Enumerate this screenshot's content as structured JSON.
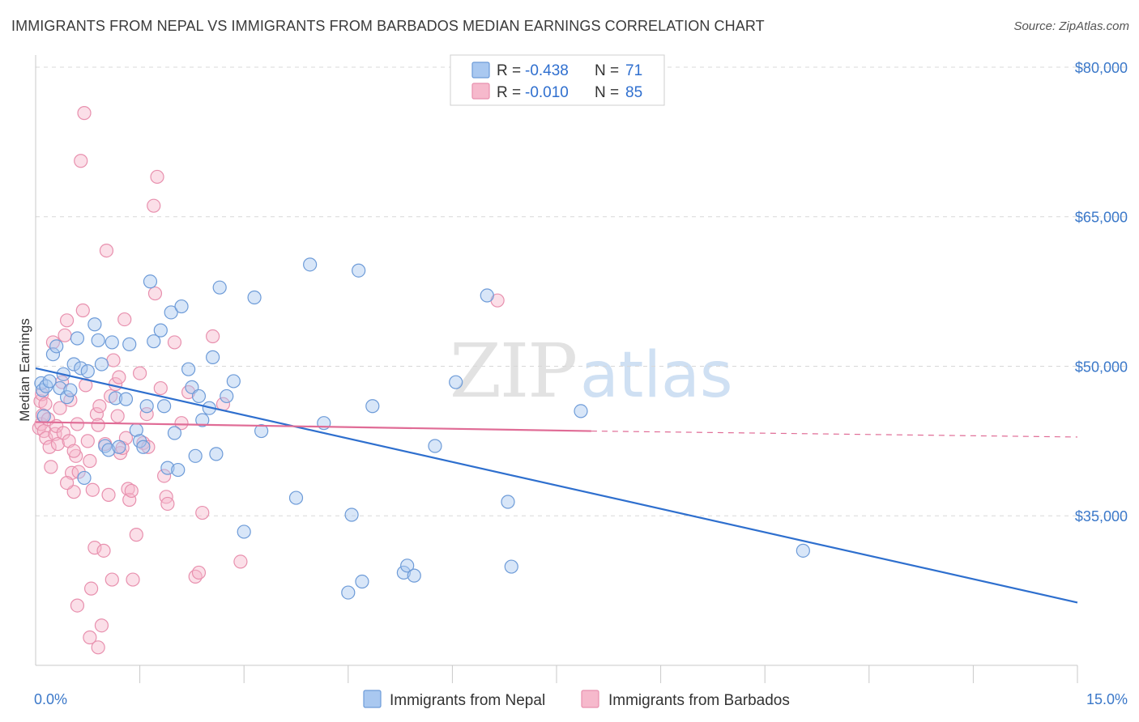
{
  "header": {
    "title": "IMMIGRANTS FROM NEPAL VS IMMIGRANTS FROM BARBADOS MEDIAN EARNINGS CORRELATION CHART",
    "source": "Source: ZipAtlas.com"
  },
  "watermark": {
    "zip": "ZIP",
    "atlas": "atlas"
  },
  "colors": {
    "nepal_fill": "#a9c8f0",
    "nepal_stroke": "#6d9bd8",
    "nepal_line": "#2e6fce",
    "barbados_fill": "#f6b9cc",
    "barbados_stroke": "#e890ae",
    "barbados_line": "#e06c96",
    "grid": "#d8d8d8",
    "axis_text": "#3b78c9"
  },
  "legend": {
    "r_label": "R =",
    "n_label": "N =",
    "items": [
      {
        "series": "nepal",
        "r": "-0.438",
        "n": "71"
      },
      {
        "series": "barbados",
        "r": "-0.010",
        "n": "85"
      }
    ]
  },
  "chart_data": {
    "type": "scatter",
    "title": "IMMIGRANTS FROM NEPAL VS IMMIGRANTS FROM BARBADOS MEDIAN EARNINGS CORRELATION CHART",
    "xlabel": "",
    "ylabel": "Median Earnings",
    "xlim": [
      0,
      15
    ],
    "ylim": [
      20000,
      83000
    ],
    "x_tick_labels": {
      "min": "0.0%",
      "max": "15.0%"
    },
    "y_ticks": [
      {
        "value": 80000,
        "label": "$80,000"
      },
      {
        "value": 65000,
        "label": "$65,000"
      },
      {
        "value": 50000,
        "label": "$50,000"
      },
      {
        "value": 35000,
        "label": "$35,000"
      }
    ],
    "series": [
      {
        "name": "Immigrants from Nepal",
        "key": "nepal",
        "trend": {
          "x0": 0.0,
          "y0": 49800,
          "x1": 15.0,
          "y1": 26300
        },
        "points": [
          [
            0.08,
            48300
          ],
          [
            0.1,
            47600
          ],
          [
            0.12,
            45000
          ],
          [
            0.15,
            48000
          ],
          [
            0.2,
            48500
          ],
          [
            0.25,
            51200
          ],
          [
            0.3,
            52000
          ],
          [
            0.35,
            47800
          ],
          [
            0.4,
            49200
          ],
          [
            0.45,
            46900
          ],
          [
            0.5,
            47600
          ],
          [
            0.55,
            50200
          ],
          [
            0.6,
            52800
          ],
          [
            0.65,
            49800
          ],
          [
            0.7,
            38800
          ],
          [
            0.75,
            49500
          ],
          [
            0.85,
            54200
          ],
          [
            0.9,
            52600
          ],
          [
            0.95,
            50200
          ],
          [
            1.0,
            42000
          ],
          [
            1.05,
            41600
          ],
          [
            1.1,
            52400
          ],
          [
            1.15,
            46800
          ],
          [
            1.2,
            41900
          ],
          [
            1.3,
            46700
          ],
          [
            1.35,
            52200
          ],
          [
            1.45,
            43600
          ],
          [
            1.5,
            42500
          ],
          [
            1.55,
            41900
          ],
          [
            1.6,
            46000
          ],
          [
            1.65,
            58500
          ],
          [
            1.7,
            52500
          ],
          [
            1.8,
            53600
          ],
          [
            1.85,
            46000
          ],
          [
            1.9,
            39800
          ],
          [
            1.95,
            55400
          ],
          [
            2.0,
            43300
          ],
          [
            2.05,
            39600
          ],
          [
            2.1,
            56000
          ],
          [
            2.2,
            49700
          ],
          [
            2.25,
            47900
          ],
          [
            2.3,
            41000
          ],
          [
            2.35,
            47000
          ],
          [
            2.4,
            44600
          ],
          [
            2.5,
            45800
          ],
          [
            2.55,
            50900
          ],
          [
            2.6,
            41200
          ],
          [
            2.65,
            57900
          ],
          [
            2.75,
            47000
          ],
          [
            2.85,
            48500
          ],
          [
            3.0,
            33400
          ],
          [
            3.15,
            56900
          ],
          [
            3.25,
            43500
          ],
          [
            3.75,
            36800
          ],
          [
            3.95,
            60200
          ],
          [
            4.15,
            44300
          ],
          [
            4.5,
            27300
          ],
          [
            4.55,
            35100
          ],
          [
            4.65,
            59600
          ],
          [
            4.7,
            28400
          ],
          [
            4.85,
            46000
          ],
          [
            5.3,
            29300
          ],
          [
            5.35,
            30000
          ],
          [
            5.45,
            29000
          ],
          [
            5.75,
            42000
          ],
          [
            6.05,
            48400
          ],
          [
            6.5,
            57100
          ],
          [
            6.8,
            36400
          ],
          [
            6.85,
            29900
          ],
          [
            7.85,
            45500
          ],
          [
            11.05,
            31500
          ]
        ]
      },
      {
        "name": "Immigrants from Barbados",
        "key": "barbados",
        "trend": {
          "x0": 0.0,
          "y0": 44400,
          "x1": 8.0,
          "y1": 43500
        },
        "trend_dashed": {
          "x0": 8.0,
          "y0": 43500,
          "x1": 15.0,
          "y1": 42900
        },
        "points": [
          [
            0.05,
            43800
          ],
          [
            0.07,
            46500
          ],
          [
            0.08,
            44200
          ],
          [
            0.09,
            47200
          ],
          [
            0.1,
            45100
          ],
          [
            0.12,
            43500
          ],
          [
            0.14,
            46200
          ],
          [
            0.15,
            42800
          ],
          [
            0.18,
            44700
          ],
          [
            0.2,
            41900
          ],
          [
            0.22,
            39900
          ],
          [
            0.25,
            52400
          ],
          [
            0.28,
            43200
          ],
          [
            0.3,
            44000
          ],
          [
            0.32,
            42200
          ],
          [
            0.35,
            45800
          ],
          [
            0.38,
            48400
          ],
          [
            0.4,
            43300
          ],
          [
            0.42,
            53100
          ],
          [
            0.45,
            54600
          ],
          [
            0.48,
            42500
          ],
          [
            0.5,
            46600
          ],
          [
            0.52,
            39300
          ],
          [
            0.55,
            37400
          ],
          [
            0.58,
            41000
          ],
          [
            0.6,
            44200
          ],
          [
            0.62,
            39400
          ],
          [
            0.65,
            70600
          ],
          [
            0.68,
            55600
          ],
          [
            0.7,
            75400
          ],
          [
            0.72,
            48100
          ],
          [
            0.75,
            42500
          ],
          [
            0.78,
            40500
          ],
          [
            0.8,
            27700
          ],
          [
            0.82,
            37600
          ],
          [
            0.85,
            31800
          ],
          [
            0.88,
            45200
          ],
          [
            0.9,
            44100
          ],
          [
            0.92,
            46000
          ],
          [
            0.95,
            24000
          ],
          [
            0.98,
            31500
          ],
          [
            1.0,
            42200
          ],
          [
            1.02,
            61600
          ],
          [
            1.05,
            37100
          ],
          [
            1.08,
            47000
          ],
          [
            1.1,
            28600
          ],
          [
            1.12,
            50600
          ],
          [
            1.15,
            48200
          ],
          [
            1.18,
            45000
          ],
          [
            1.2,
            48900
          ],
          [
            1.22,
            41300
          ],
          [
            1.25,
            41800
          ],
          [
            1.28,
            54700
          ],
          [
            1.3,
            42800
          ],
          [
            1.33,
            37700
          ],
          [
            1.35,
            36600
          ],
          [
            1.38,
            37500
          ],
          [
            1.4,
            28600
          ],
          [
            1.45,
            33100
          ],
          [
            1.5,
            49300
          ],
          [
            1.55,
            42300
          ],
          [
            1.6,
            45200
          ],
          [
            1.62,
            41900
          ],
          [
            1.7,
            66100
          ],
          [
            1.72,
            57300
          ],
          [
            1.75,
            69000
          ],
          [
            1.8,
            47800
          ],
          [
            1.85,
            39000
          ],
          [
            1.88,
            36900
          ],
          [
            1.9,
            36200
          ],
          [
            2.0,
            52400
          ],
          [
            2.1,
            44300
          ],
          [
            2.2,
            47400
          ],
          [
            2.3,
            28900
          ],
          [
            2.35,
            29300
          ],
          [
            2.4,
            35300
          ],
          [
            2.55,
            53000
          ],
          [
            2.7,
            46200
          ],
          [
            2.95,
            30400
          ],
          [
            0.55,
            41500
          ],
          [
            0.45,
            38300
          ],
          [
            0.6,
            26000
          ],
          [
            0.78,
            22800
          ],
          [
            0.9,
            21800
          ],
          [
            6.65,
            56600
          ]
        ]
      }
    ]
  },
  "bottom_legend": {
    "items": [
      {
        "series": "nepal",
        "label": "Immigrants from Nepal"
      },
      {
        "series": "barbados",
        "label": "Immigrants from Barbados"
      }
    ]
  }
}
